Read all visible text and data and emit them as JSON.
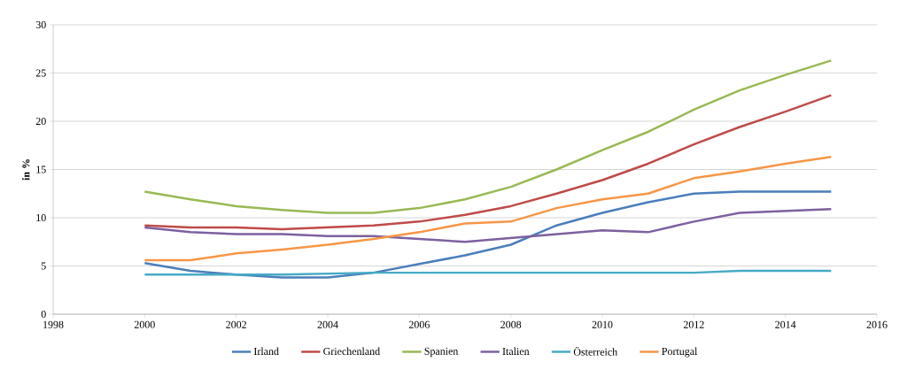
{
  "chart_data": {
    "type": "line",
    "ylabel": "in %",
    "xlim": [
      1998,
      2016
    ],
    "xticks": [
      1998,
      2000,
      2002,
      2004,
      2006,
      2008,
      2010,
      2012,
      2014,
      2016
    ],
    "ylim": [
      0,
      30
    ],
    "yticks": [
      0,
      5,
      10,
      15,
      20,
      25,
      30
    ],
    "grid": "y",
    "legend": "bottom",
    "marker": "none",
    "x": [
      2000,
      2001,
      2002,
      2003,
      2004,
      2005,
      2006,
      2007,
      2008,
      2009,
      2010,
      2011,
      2012,
      2013,
      2014,
      2015
    ],
    "series": [
      {
        "name": "Irland",
        "color": "#4a7ebb",
        "values": [
          5.3,
          4.5,
          4.1,
          3.8,
          3.8,
          4.3,
          5.2,
          6.1,
          7.2,
          9.2,
          10.5,
          11.6,
          12.5,
          12.7,
          12.7,
          12.7
        ]
      },
      {
        "name": "Griechenland",
        "color": "#be4b48",
        "values": [
          9.2,
          9.0,
          9.0,
          8.8,
          9.0,
          9.2,
          9.6,
          10.3,
          11.2,
          12.5,
          13.9,
          15.6,
          17.6,
          19.4,
          21.0,
          22.7
        ]
      },
      {
        "name": "Spanien",
        "color": "#98b954",
        "values": [
          12.7,
          11.9,
          11.2,
          10.8,
          10.5,
          10.5,
          11.0,
          11.9,
          13.2,
          15.0,
          17.0,
          18.9,
          21.2,
          23.2,
          24.8,
          26.3
        ]
      },
      {
        "name": "Italien",
        "color": "#7d60a0",
        "values": [
          9.0,
          8.5,
          8.3,
          8.3,
          8.1,
          8.1,
          7.8,
          7.5,
          7.9,
          8.3,
          8.7,
          8.5,
          9.6,
          10.5,
          10.7,
          10.9
        ]
      },
      {
        "name": "Österreich",
        "color": "#46aac5",
        "values": [
          4.1,
          4.1,
          4.1,
          4.1,
          4.2,
          4.3,
          4.3,
          4.3,
          4.3,
          4.3,
          4.3,
          4.3,
          4.3,
          4.5,
          4.5,
          4.5
        ]
      },
      {
        "name": "Portugal",
        "color": "#f79646",
        "values": [
          5.6,
          5.6,
          6.3,
          6.7,
          7.2,
          7.8,
          8.5,
          9.4,
          9.6,
          11.0,
          11.9,
          12.5,
          14.1,
          14.8,
          15.6,
          16.3
        ]
      }
    ]
  }
}
